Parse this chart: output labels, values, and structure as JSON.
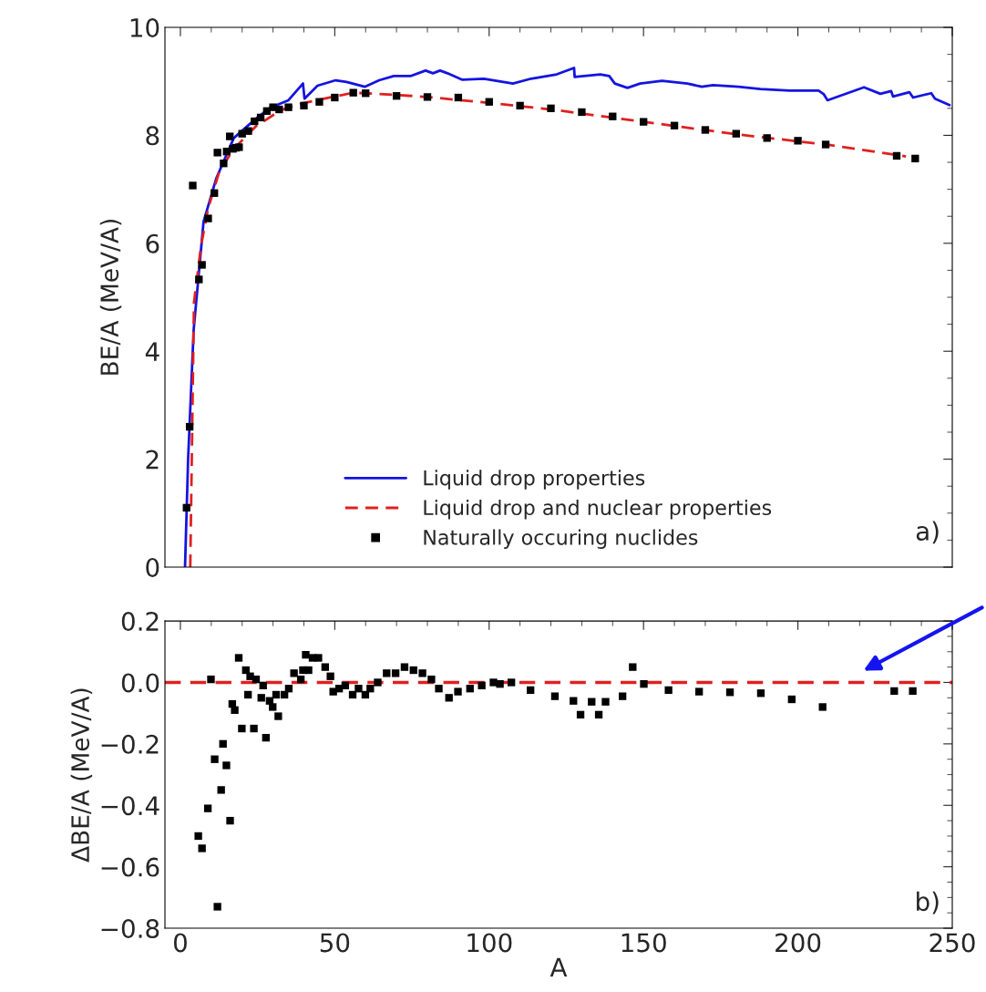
{
  "chart_data": [
    {
      "type": "line",
      "ylabel": "BE/A (MeV/A)",
      "xlim": [
        -5,
        250
      ],
      "ylim": [
        0,
        10
      ],
      "xticks": [
        0,
        50,
        100,
        150,
        200,
        250
      ],
      "yticks": [
        0,
        2,
        4,
        6,
        8,
        10
      ],
      "tick_labels": "y",
      "legend": "bottom",
      "grid": false,
      "annotations": [
        "a)"
      ],
      "series": [
        {
          "name": "Liquid drop properties",
          "color": "#1414e0",
          "line_style": "solid",
          "x": [
            1.5,
            2.5,
            4.3,
            7.5,
            11.6,
            17.3,
            24.3,
            29,
            35,
            39.7,
            40.2,
            44.4,
            50.3,
            53.8,
            59.7,
            64.4,
            69.1,
            74.7,
            79.4,
            81.8,
            84.1,
            86.5,
            91.3,
            98.3,
            107.7,
            113.6,
            121.9,
            127.5,
            127.7,
            136,
            138.9,
            140.7,
            144.8,
            148.9,
            156,
            164.2,
            168.9,
            172.5,
            180.7,
            187.8,
            197.3,
            206.7,
            208.4,
            209.6,
            221.4,
            226.7,
            230.2,
            230.8,
            236.1,
            237.3,
            243.2,
            244.4,
            249.1
          ],
          "values": [
            0,
            2.0,
            4.4,
            6.4,
            7.2,
            7.95,
            8.3,
            8.51,
            8.65,
            8.96,
            8.68,
            8.92,
            9.02,
            8.99,
            8.9,
            9.02,
            9.1,
            9.1,
            9.2,
            9.15,
            9.2,
            9.15,
            9.03,
            9.05,
            8.96,
            9.05,
            9.13,
            9.25,
            9.08,
            9.13,
            9.1,
            8.96,
            8.88,
            8.96,
            9.01,
            8.96,
            8.9,
            8.93,
            8.9,
            8.86,
            8.83,
            8.83,
            8.76,
            8.65,
            8.89,
            8.77,
            8.82,
            8.72,
            8.8,
            8.7,
            8.78,
            8.68,
            8.56
          ]
        },
        {
          "name": "Liquid drop and nuclear properties",
          "color": "#e02020",
          "line_style": "dashed",
          "x": [
            3.2,
            4.4,
            6.7,
            9,
            12.6,
            17.3,
            24.3,
            32.6,
            40,
            50,
            56,
            70,
            80,
            100,
            120,
            150,
            180,
            209,
            235
          ],
          "values": [
            0,
            4.9,
            5.96,
            6.65,
            7.33,
            7.75,
            8.16,
            8.47,
            8.6,
            8.72,
            8.79,
            8.75,
            8.71,
            8.6,
            8.48,
            8.25,
            8.02,
            7.83,
            7.61
          ]
        },
        {
          "name": "Naturally occuring nuclides",
          "type": "scatter",
          "color": "#000000",
          "marker": "square",
          "x": [
            2,
            3,
            4,
            6,
            7,
            9,
            11,
            12,
            14,
            15,
            16,
            17,
            18,
            19,
            20,
            22,
            24,
            26,
            28,
            30,
            32,
            35,
            40,
            45,
            50,
            56,
            60,
            70,
            80,
            90,
            100,
            110,
            120,
            130,
            140,
            150,
            160,
            170,
            180,
            190,
            200,
            209,
            232,
            238
          ],
          "values": [
            1.1,
            2.6,
            7.07,
            5.33,
            5.6,
            6.46,
            6.93,
            7.68,
            7.48,
            7.7,
            7.98,
            7.75,
            7.77,
            7.78,
            8.03,
            8.08,
            8.26,
            8.33,
            8.45,
            8.52,
            8.48,
            8.52,
            8.55,
            8.62,
            8.7,
            8.79,
            8.78,
            8.73,
            8.71,
            8.7,
            8.62,
            8.55,
            8.5,
            8.43,
            8.35,
            8.25,
            8.18,
            8.1,
            8.03,
            7.95,
            7.9,
            7.83,
            7.62,
            7.57
          ]
        }
      ]
    },
    {
      "type": "scatter",
      "xlabel": "A",
      "ylabel": "ΔBE/A (MeV/A)",
      "xlim": [
        -5,
        250
      ],
      "ylim": [
        -0.8,
        0.2
      ],
      "xticks": [
        0,
        50,
        100,
        150,
        200,
        250
      ],
      "yticks": [
        {
          "value": -0.8,
          "label": "−0.8"
        },
        {
          "value": -0.6,
          "label": "−0.6"
        },
        {
          "value": -0.4,
          "label": "−0.4"
        },
        {
          "value": -0.2,
          "label": "−0.2"
        },
        {
          "value": 0,
          "label": "0.0"
        },
        {
          "value": 0.2,
          "label": "0.2"
        }
      ],
      "grid": false,
      "annotations": [
        "b)"
      ],
      "ref_lines": [
        {
          "axis": "y",
          "value": 0,
          "label": null,
          "color": "#e02020",
          "line_style": "dashed"
        }
      ],
      "series": [
        {
          "color": "#000000",
          "marker": "square",
          "x": [
            5.8,
            7.0,
            8.9,
            9.9,
            11.1,
            12.0,
            13.2,
            13.8,
            14.9,
            16.1,
            16.8,
            17.6,
            18.9,
            19.9,
            21.2,
            21.9,
            22.6,
            23.8,
            24.5,
            26.2,
            26.8,
            27.7,
            28.9,
            29.9,
            31.0,
            31.7,
            33.7,
            35.1,
            36.8,
            39.0,
            39.7,
            40.6,
            41.5,
            42.8,
            44.7,
            46.9,
            48.6,
            49.5,
            51.4,
            53.4,
            55.8,
            57.7,
            59.9,
            61.5,
            63.9,
            66.8,
            69.7,
            72.6,
            75.5,
            78.4,
            81.3,
            83.7,
            87.0,
            89.9,
            93.8,
            97.6,
            101.4,
            103.5,
            107.2,
            113.4,
            121.3,
            127.3,
            129.6,
            133.2,
            135.5,
            137.7,
            143.2,
            146.5,
            150.1,
            158.1,
            168,
            178,
            188,
            198,
            208,
            231.2,
            237.2
          ],
          "values": [
            -0.5,
            -0.54,
            -0.41,
            0.01,
            -0.25,
            -0.73,
            -0.35,
            -0.2,
            -0.27,
            -0.45,
            -0.07,
            -0.09,
            0.08,
            -0.15,
            0.04,
            -0.04,
            0.02,
            -0.15,
            0.01,
            -0.05,
            -0.01,
            -0.18,
            -0.06,
            -0.08,
            -0.04,
            -0.11,
            -0.04,
            -0.02,
            0.03,
            0.01,
            0.04,
            0.09,
            0.04,
            0.08,
            0.08,
            0.05,
            0.02,
            -0.03,
            -0.02,
            -0.01,
            -0.04,
            -0.02,
            -0.04,
            -0.02,
            0.0,
            0.03,
            0.03,
            0.05,
            0.04,
            0.03,
            0.01,
            -0.02,
            -0.05,
            -0.03,
            -0.02,
            -0.01,
            0.0,
            -0.005,
            0.0,
            -0.025,
            -0.045,
            -0.06,
            -0.105,
            -0.063,
            -0.105,
            -0.063,
            -0.045,
            0.05,
            -0.005,
            -0.025,
            -0.03,
            -0.032,
            -0.035,
            -0.055,
            -0.08,
            -0.028,
            -0.028
          ]
        }
      ]
    }
  ]
}
